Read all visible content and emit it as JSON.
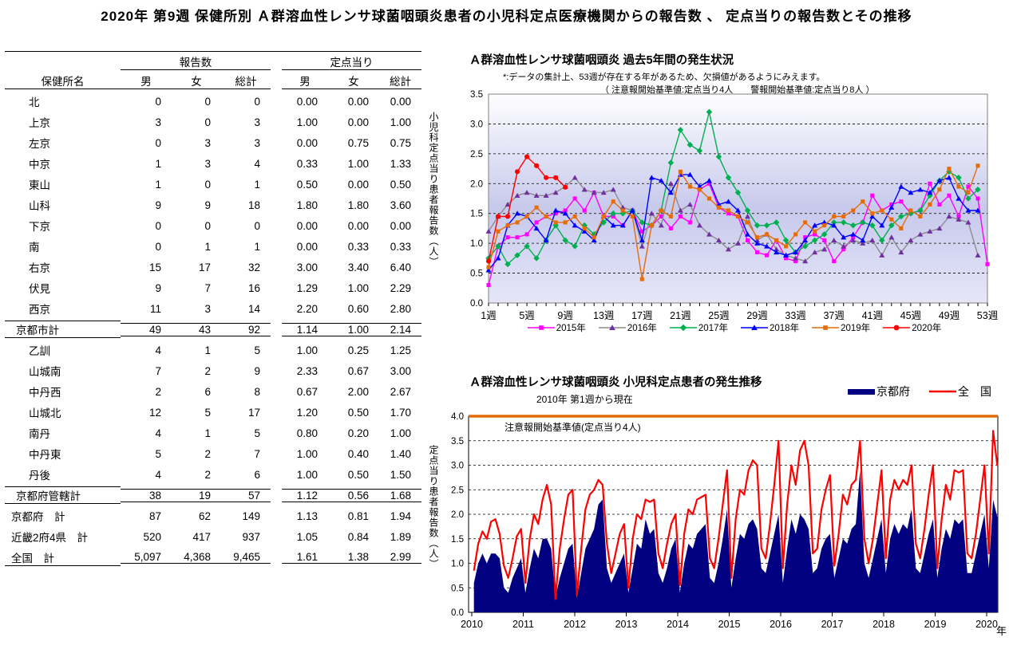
{
  "page_title": "2020年 第9週 保健所別 Ａ群溶血性レンサ球菌咽頭炎患者の小児科定点医療機関からの報告数 、 定点当りの報告数とその推移",
  "table": {
    "group_headers": {
      "reports": "報告数",
      "per_sentinel": "定点当り"
    },
    "col_headers": {
      "name": "保健所名",
      "male": "男",
      "female": "女",
      "total": "総計"
    },
    "rows": [
      {
        "name": "北",
        "style": "data",
        "vals": [
          "0",
          "0",
          "0",
          "0.00",
          "0.00",
          "0.00"
        ]
      },
      {
        "name": "上京",
        "style": "data",
        "vals": [
          "3",
          "0",
          "3",
          "1.00",
          "0.00",
          "1.00"
        ]
      },
      {
        "name": "左京",
        "style": "data",
        "vals": [
          "0",
          "3",
          "3",
          "0.00",
          "0.75",
          "0.75"
        ]
      },
      {
        "name": "中京",
        "style": "data",
        "vals": [
          "1",
          "3",
          "4",
          "0.33",
          "1.00",
          "1.33"
        ]
      },
      {
        "name": "東山",
        "style": "data",
        "vals": [
          "1",
          "0",
          "1",
          "0.50",
          "0.00",
          "0.50"
        ]
      },
      {
        "name": "山科",
        "style": "data",
        "vals": [
          "9",
          "9",
          "18",
          "1.80",
          "1.80",
          "3.60"
        ]
      },
      {
        "name": "下京",
        "style": "data",
        "vals": [
          "0",
          "0",
          "0",
          "0.00",
          "0.00",
          "0.00"
        ]
      },
      {
        "name": "南",
        "style": "data",
        "vals": [
          "0",
          "1",
          "1",
          "0.00",
          "0.33",
          "0.33"
        ]
      },
      {
        "name": "右京",
        "style": "data",
        "vals": [
          "15",
          "17",
          "32",
          "3.00",
          "3.40",
          "6.40"
        ]
      },
      {
        "name": "伏見",
        "style": "data",
        "vals": [
          "9",
          "7",
          "16",
          "1.29",
          "1.00",
          "2.29"
        ]
      },
      {
        "name": "西京",
        "style": "data",
        "vals": [
          "11",
          "3",
          "14",
          "2.20",
          "0.60",
          "2.80"
        ]
      },
      {
        "name": "京都市計",
        "style": "sub",
        "rule_above": true,
        "rule_below": true,
        "vals": [
          "49",
          "43",
          "92",
          "1.14",
          "1.00",
          "2.14"
        ]
      },
      {
        "name": "乙訓",
        "style": "data",
        "vals": [
          "4",
          "1",
          "5",
          "1.00",
          "0.25",
          "1.25"
        ]
      },
      {
        "name": "山城南",
        "style": "data",
        "vals": [
          "7",
          "2",
          "9",
          "2.33",
          "0.67",
          "3.00"
        ]
      },
      {
        "name": "中丹西",
        "style": "data",
        "vals": [
          "2",
          "6",
          "8",
          "0.67",
          "2.00",
          "2.67"
        ]
      },
      {
        "name": "山城北",
        "style": "data",
        "vals": [
          "12",
          "5",
          "17",
          "1.20",
          "0.50",
          "1.70"
        ]
      },
      {
        "name": "南丹",
        "style": "data",
        "vals": [
          "4",
          "1",
          "5",
          "0.80",
          "0.20",
          "1.00"
        ]
      },
      {
        "name": "中丹東",
        "style": "data",
        "vals": [
          "5",
          "2",
          "7",
          "1.00",
          "0.40",
          "1.40"
        ]
      },
      {
        "name": "丹後",
        "style": "data",
        "vals": [
          "4",
          "2",
          "6",
          "1.00",
          "0.50",
          "1.50"
        ]
      },
      {
        "name": "京都府管轄計",
        "style": "sub",
        "rule_above": true,
        "rule_below": true,
        "vals": [
          "38",
          "19",
          "57",
          "1.12",
          "0.56",
          "1.68"
        ]
      },
      {
        "name": "京都府　計",
        "style": "total",
        "vals": [
          "87",
          "62",
          "149",
          "1.13",
          "0.81",
          "1.94"
        ]
      },
      {
        "name": "近畿2府4県　計",
        "style": "total",
        "vals": [
          "520",
          "417",
          "937",
          "1.05",
          "0.84",
          "1.89"
        ]
      },
      {
        "name": "全国　計",
        "style": "total",
        "rule_below": true,
        "vals": [
          "5,097",
          "4,368",
          "9,465",
          "1.61",
          "1.38",
          "2.99"
        ]
      }
    ]
  },
  "chart_data": [
    {
      "type": "line",
      "title": "Ａ群溶血性レンサ球菌咽頭炎 過去5年間の発生状況",
      "note1": "*:データの集計上、53週が存在する年があるため、欠損値があるようにみえます。",
      "note2": "（ 注意報開始基準値:定点当り4人　　警報開始基準値:定点当り8人 ）",
      "ylabel": "小児科定点当り患者報告数（人）",
      "ylim": [
        0,
        3.5
      ],
      "ytick": 0.5,
      "weeks_max": 53,
      "xtick_step": 4,
      "xtick_labels": [
        "1週",
        "5週",
        "9週",
        "13週",
        "17週",
        "21週",
        "25週",
        "29週",
        "33週",
        "37週",
        "41週",
        "45週",
        "49週",
        "53週"
      ],
      "legend_position": "bottom",
      "grid": "dashed-horizontal",
      "plot_bg_gradient": [
        "#FEFEFF",
        "#C7C9EC",
        "#E6E6F8"
      ],
      "series": [
        {
          "name": "2015年",
          "line_color": "#FF00FF",
          "marker": "square",
          "marker_color": "#FF00FF",
          "values": [
            0.3,
            0.95,
            1.1,
            1.1,
            1.15,
            1.35,
            1.45,
            1.5,
            1.55,
            1.75,
            1.55,
            1.85,
            1.45,
            1.45,
            1.3,
            1.55,
            1.2,
            1.3,
            1.45,
            1.25,
            1.45,
            1.35,
            1.9,
            2.0,
            1.6,
            1.5,
            1.45,
            1.05,
            0.85,
            0.8,
            1.05,
            0.75,
            0.7,
            1.1,
            1.15,
            1.05,
            0.7,
            0.9,
            1.1,
            1.35,
            1.8,
            1.55,
            1.65,
            1.7,
            1.5,
            1.55,
            2.0,
            1.65,
            1.8,
            1.45,
            1.95,
            1.75,
            0.65
          ]
        },
        {
          "name": "2016年",
          "line_color": "#8C8C8C",
          "marker": "triangle",
          "marker_color": "#7030A0",
          "values": [
            1.2,
            1.45,
            1.65,
            1.8,
            1.85,
            1.8,
            1.8,
            1.85,
            1.95,
            2.1,
            1.9,
            1.85,
            1.85,
            1.9,
            1.6,
            1.55,
            0.95,
            1.5,
            1.3,
            2.0,
            1.55,
            1.65,
            1.3,
            1.15,
            1.05,
            0.9,
            1.0,
            1.45,
            1.05,
            1.15,
            0.9,
            0.8,
            0.75,
            0.7,
            0.85,
            0.9,
            1.05,
            0.95,
            1.05,
            1.0,
            1.05,
            0.8,
            1.1,
            0.85,
            1.05,
            1.15,
            1.2,
            1.25,
            1.45,
            1.4,
            1.35,
            0.8
          ]
        },
        {
          "name": "2017年",
          "line_color": "#00B050",
          "marker": "diamond",
          "marker_color": "#00B050",
          "values": [
            0.75,
            0.95,
            0.65,
            0.8,
            0.95,
            0.75,
            1.05,
            1.3,
            1.05,
            0.95,
            1.3,
            1.15,
            1.35,
            1.5,
            1.5,
            1.55,
            1.35,
            1.3,
            1.55,
            2.35,
            2.9,
            2.65,
            2.55,
            3.2,
            2.45,
            2.1,
            1.85,
            1.55,
            1.3,
            1.3,
            1.35,
            1.05,
            0.85,
            0.95,
            1.05,
            1.15,
            1.35,
            1.35,
            1.3,
            1.35,
            1.3,
            1.05,
            1.3,
            1.45,
            1.5,
            1.55,
            1.8,
            2.05,
            2.2,
            2.1,
            1.75,
            1.9
          ]
        },
        {
          "name": "2018年",
          "line_color": "#0000FF",
          "marker": "triangle",
          "marker_color": "#0000FF",
          "values": [
            0.55,
            0.75,
            1.3,
            1.5,
            1.45,
            1.25,
            1.05,
            1.55,
            1.5,
            1.3,
            1.2,
            1.05,
            1.45,
            1.3,
            1.3,
            1.55,
            1.05,
            2.1,
            2.05,
            1.85,
            2.15,
            2.15,
            1.95,
            2.05,
            1.65,
            1.7,
            1.55,
            1.15,
            1.0,
            0.95,
            0.85,
            0.8,
            0.85,
            1.05,
            1.3,
            1.35,
            1.3,
            1.1,
            1.15,
            1.05,
            1.45,
            1.3,
            1.6,
            1.95,
            1.85,
            1.9,
            1.85,
            2.05,
            2.1,
            1.75,
            1.55,
            1.55
          ]
        },
        {
          "name": "2019年",
          "line_color": "#E46C0A",
          "marker": "square",
          "marker_color": "#E46C0A",
          "values": [
            0.6,
            1.2,
            1.3,
            1.35,
            1.45,
            1.6,
            1.45,
            1.35,
            1.35,
            1.45,
            1.25,
            1.1,
            1.45,
            1.7,
            1.55,
            1.45,
            0.4,
            1.3,
            1.55,
            1.45,
            2.2,
            1.95,
            1.9,
            1.75,
            1.6,
            1.55,
            1.45,
            1.35,
            1.1,
            1.15,
            1.05,
            0.95,
            1.15,
            1.35,
            1.2,
            1.3,
            1.45,
            1.45,
            1.55,
            1.7,
            1.5,
            1.55,
            1.4,
            1.25,
            1.55,
            1.45,
            1.65,
            1.9,
            2.25,
            1.95,
            1.85,
            2.3
          ]
        },
        {
          "name": "2020年",
          "line_color": "#FF0000",
          "marker": "circle",
          "marker_color": "#FF0000",
          "values": [
            0.7,
            1.45,
            1.45,
            2.2,
            2.45,
            2.3,
            2.1,
            2.1,
            1.94
          ]
        }
      ]
    },
    {
      "type": "area",
      "title": "Ａ群溶血性レンサ球菌咽頭炎 小児科定点患者の発生推移",
      "subtitle": "2010年 第1週から現在",
      "ylabel": "定点当り患者報告数（人）",
      "ylim": [
        0,
        4.0
      ],
      "ytick": 0.5,
      "grid": "dashed-horizontal",
      "x_years": [
        2010,
        2011,
        2012,
        2013,
        2014,
        2015,
        2016,
        2017,
        2018,
        2019,
        2020
      ],
      "x_unit_label": "年",
      "start_year": 2010,
      "points_per_year": 12,
      "threshold": {
        "value": 4.0,
        "color": "#E46C0A",
        "label": "注意報開始基準値(定点当り4人)"
      },
      "series": [
        {
          "name": "京都府",
          "color": "#000080",
          "kind": "area",
          "values": [
            0.6,
            1.0,
            1.2,
            1.0,
            1.2,
            1.2,
            1.1,
            0.5,
            0.4,
            0.7,
            0.9,
            1.1,
            0.4,
            0.9,
            1.3,
            1.1,
            1.5,
            1.5,
            1.3,
            0.3,
            0.7,
            1.0,
            1.3,
            1.4,
            0.3,
            0.8,
            1.3,
            1.5,
            1.7,
            2.2,
            2.3,
            0.9,
            0.6,
            0.8,
            1.0,
            1.2,
            0.4,
            0.9,
            1.4,
            1.3,
            1.9,
            1.6,
            1.7,
            0.8,
            0.6,
            0.9,
            1.3,
            1.5,
            0.4,
            1.0,
            1.4,
            1.3,
            1.6,
            1.7,
            1.8,
            0.7,
            0.6,
            1.0,
            1.5,
            2.1,
            0.5,
            1.1,
            1.6,
            1.5,
            1.8,
            1.9,
            1.7,
            0.9,
            0.8,
            1.2,
            1.6,
            2.0,
            0.6,
            1.3,
            1.9,
            1.6,
            2.0,
            1.9,
            1.7,
            0.8,
            0.9,
            1.3,
            1.5,
            1.6,
            0.7,
            1.1,
            1.5,
            1.4,
            1.7,
            1.8,
            2.9,
            1.0,
            0.7,
            1.1,
            1.5,
            1.9,
            0.8,
            1.5,
            1.8,
            1.6,
            1.8,
            1.7,
            2.1,
            0.9,
            0.8,
            1.2,
            1.6,
            1.9,
            0.7,
            1.3,
            1.7,
            1.5,
            1.9,
            1.8,
            1.9,
            0.8,
            0.8,
            1.2,
            1.6,
            2.0,
            0.9,
            2.3,
            1.94
          ]
        },
        {
          "name": "全　国",
          "color": "#FF0000",
          "kind": "line",
          "values": [
            0.85,
            1.4,
            1.65,
            1.5,
            1.85,
            1.9,
            1.6,
            0.95,
            0.7,
            1.1,
            1.55,
            1.7,
            0.6,
            1.5,
            2.0,
            1.8,
            2.3,
            2.6,
            2.2,
            0.27,
            1.3,
            1.9,
            2.4,
            2.5,
            0.35,
            1.3,
            2.1,
            2.4,
            2.5,
            2.7,
            2.6,
            1.4,
            0.8,
            1.2,
            1.6,
            1.8,
            0.5,
            1.5,
            2.0,
            1.9,
            2.3,
            2.25,
            2.3,
            1.2,
            0.9,
            1.4,
            1.8,
            2.0,
            0.55,
            1.6,
            2.1,
            2.0,
            2.3,
            2.35,
            2.4,
            1.1,
            0.9,
            1.5,
            2.2,
            2.9,
            0.7,
            1.9,
            2.5,
            2.4,
            2.9,
            3.1,
            3.0,
            1.3,
            1.1,
            1.8,
            2.6,
            3.5,
            0.9,
            2.2,
            3.0,
            2.6,
            3.3,
            3.5,
            3.0,
            1.2,
            1.3,
            2.1,
            2.5,
            2.8,
            0.95,
            1.6,
            2.4,
            2.2,
            2.6,
            2.7,
            3.5,
            1.5,
            1.0,
            1.5,
            2.2,
            2.9,
            1.1,
            2.3,
            2.7,
            2.5,
            2.7,
            2.6,
            3.0,
            1.4,
            1.1,
            1.7,
            2.4,
            3.0,
            0.9,
            1.9,
            2.6,
            2.3,
            2.9,
            2.85,
            2.9,
            1.2,
            1.1,
            1.6,
            2.3,
            3.0,
            1.2,
            3.7,
            2.99
          ]
        }
      ]
    }
  ]
}
